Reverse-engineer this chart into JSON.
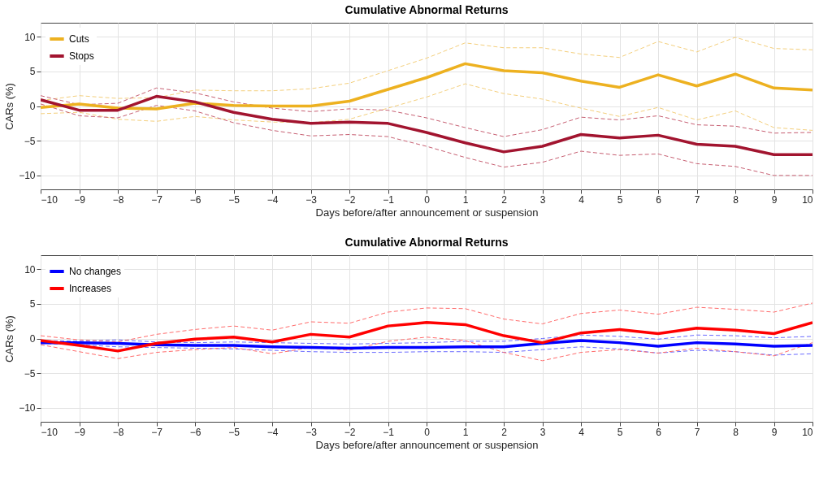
{
  "chart_data": [
    {
      "type": "line",
      "title": "Cumulative Abnormal Returns",
      "xlabel": "Days before/after announcement or suspension",
      "ylabel": "CARs (%)",
      "x": [
        -10,
        -9,
        -8,
        -7,
        -6,
        -5,
        -4,
        -3,
        -2,
        -1,
        0,
        1,
        2,
        3,
        4,
        5,
        6,
        7,
        8,
        9,
        10
      ],
      "xlim": [
        -10,
        10
      ],
      "xticks": [
        -10,
        -9,
        -8,
        -7,
        -6,
        -5,
        -4,
        -3,
        -2,
        -1,
        0,
        1,
        2,
        3,
        4,
        5,
        6,
        7,
        8,
        9,
        10
      ],
      "ylim": [
        -12,
        12
      ],
      "yticks": [
        -10,
        -5,
        0,
        5,
        10
      ],
      "grid": true,
      "legend": "top left",
      "series": [
        {
          "name": "Cuts",
          "color": "#edb120",
          "line_style": "solid",
          "values": [
            -0.2,
            0.3,
            -0.3,
            -0.4,
            0.4,
            0.1,
            0,
            0,
            0.7,
            2.4,
            4.1,
            6.1,
            5.1,
            4.8,
            3.6,
            2.7,
            4.5,
            2.9,
            4.6,
            2.6,
            2.3
          ]
        },
        {
          "name": "Stops",
          "color": "#a2142f",
          "line_style": "solid",
          "values": [
            0.9,
            -0.6,
            -0.6,
            1.4,
            0.6,
            -0.9,
            -1.9,
            -2.5,
            -2.3,
            -2.5,
            -3.8,
            -5.3,
            -6.6,
            -5.8,
            -4.1,
            -4.6,
            -4.2,
            -5.5,
            -5.8,
            -7.0,
            -7.0
          ]
        },
        {
          "color": "#f4cf7c",
          "line_style": "dashed",
          "values": [
            -1.1,
            -0.9,
            -1.9,
            -2.2,
            -1.5,
            -2.0,
            -2.3,
            -2.4,
            -1.9,
            -0.3,
            1.3,
            3.2,
            1.8,
            1.0,
            -0.3,
            -1.5,
            -0.2,
            -2.0,
            -0.7,
            -3.1,
            -3.5
          ]
        },
        {
          "color": "#f4cf7c",
          "line_style": "dashed",
          "values": [
            0.8,
            1.5,
            1.1,
            1.2,
            2.3,
            2.2,
            2.2,
            2.5,
            3.3,
            5.1,
            6.9,
            9.1,
            8.4,
            8.4,
            7.5,
            7.0,
            9.3,
            7.8,
            9.9,
            8.3,
            8.1
          ]
        },
        {
          "color": "#c75f72",
          "line_style": "dashed",
          "values": [
            0.3,
            -1.4,
            -1.7,
            0.1,
            -0.7,
            -2.4,
            -3.5,
            -4.3,
            -4.1,
            -4.4,
            -5.8,
            -7.4,
            -8.8,
            -8.1,
            -6.5,
            -7.1,
            -6.9,
            -8.3,
            -8.7,
            -10.0,
            -10.0
          ]
        },
        {
          "color": "#c75f72",
          "line_style": "dashed",
          "values": [
            1.5,
            0.2,
            0.4,
            2.6,
            1.9,
            0.6,
            -0.3,
            -0.8,
            -0.4,
            -0.6,
            -1.7,
            -3.1,
            -4.4,
            -3.4,
            -1.6,
            -2.0,
            -1.4,
            -2.7,
            -2.9,
            -3.9,
            -3.8
          ]
        }
      ]
    },
    {
      "type": "line",
      "title": "Cumulative Abnormal Returns",
      "xlabel": "Days before/after announcement or suspension",
      "ylabel": "CARs (%)",
      "x": [
        -10,
        -9,
        -8,
        -7,
        -6,
        -5,
        -4,
        -3,
        -2,
        -1,
        0,
        1,
        2,
        3,
        4,
        5,
        6,
        7,
        8,
        9,
        10
      ],
      "xlim": [
        -10,
        10
      ],
      "xticks": [
        -10,
        -9,
        -8,
        -7,
        -6,
        -5,
        -4,
        -3,
        -2,
        -1,
        0,
        1,
        2,
        3,
        4,
        5,
        6,
        7,
        8,
        9,
        10
      ],
      "ylim": [
        -12,
        12
      ],
      "yticks": [
        -10,
        -5,
        0,
        5,
        10
      ],
      "grid": true,
      "legend": "top left",
      "series": [
        {
          "name": "No changes",
          "color": "#0000ff",
          "line_style": "solid",
          "values": [
            -0.6,
            -0.6,
            -0.7,
            -0.9,
            -1.0,
            -1.0,
            -1.2,
            -1.3,
            -1.4,
            -1.3,
            -1.3,
            -1.2,
            -1.2,
            -0.7,
            -0.3,
            -0.6,
            -1.1,
            -0.6,
            -0.8,
            -1.1,
            -1.0
          ]
        },
        {
          "name": "Increases",
          "color": "#ff0000",
          "line_style": "solid",
          "values": [
            -0.3,
            -1.0,
            -1.8,
            -0.7,
            -0.1,
            0.2,
            -0.5,
            0.6,
            0.2,
            1.8,
            2.3,
            2.0,
            0.4,
            -0.6,
            0.8,
            1.3,
            0.7,
            1.5,
            1.2,
            0.7,
            2.3
          ]
        },
        {
          "color": "#6b6bff",
          "line_style": "dashed",
          "values": [
            -0.7,
            -0.9,
            -1.2,
            -1.3,
            -1.4,
            -1.5,
            -1.7,
            -1.9,
            -2.0,
            -2.0,
            -1.9,
            -1.9,
            -2.0,
            -1.6,
            -1.2,
            -1.5,
            -2.1,
            -1.7,
            -1.9,
            -2.4,
            -2.2
          ]
        },
        {
          "color": "#6b6bff",
          "line_style": "dashed",
          "values": [
            -0.3,
            -0.4,
            -0.2,
            -0.5,
            -0.6,
            -0.5,
            -0.6,
            -0.7,
            -0.8,
            -0.7,
            -0.6,
            -0.4,
            -0.4,
            0,
            0.5,
            0.3,
            -0.1,
            0.5,
            0.4,
            0.1,
            0.3
          ]
        },
        {
          "color": "#ff6b6b",
          "line_style": "dashed",
          "values": [
            -0.9,
            -1.9,
            -2.9,
            -2.0,
            -1.6,
            -1.3,
            -2.2,
            -1.3,
            -1.7,
            -0.4,
            0.2,
            -0.3,
            -2.0,
            -3.2,
            -2.0,
            -1.6,
            -2.1,
            -1.4,
            -1.9,
            -2.5,
            -0.6
          ]
        },
        {
          "color": "#ff6b6b",
          "line_style": "dashed",
          "values": [
            0.4,
            -0.2,
            -0.5,
            0.6,
            1.3,
            1.8,
            1.2,
            2.4,
            2.2,
            3.8,
            4.4,
            4.3,
            2.8,
            2.1,
            3.6,
            4.1,
            3.5,
            4.5,
            4.2,
            3.8,
            5.1
          ]
        }
      ]
    }
  ]
}
